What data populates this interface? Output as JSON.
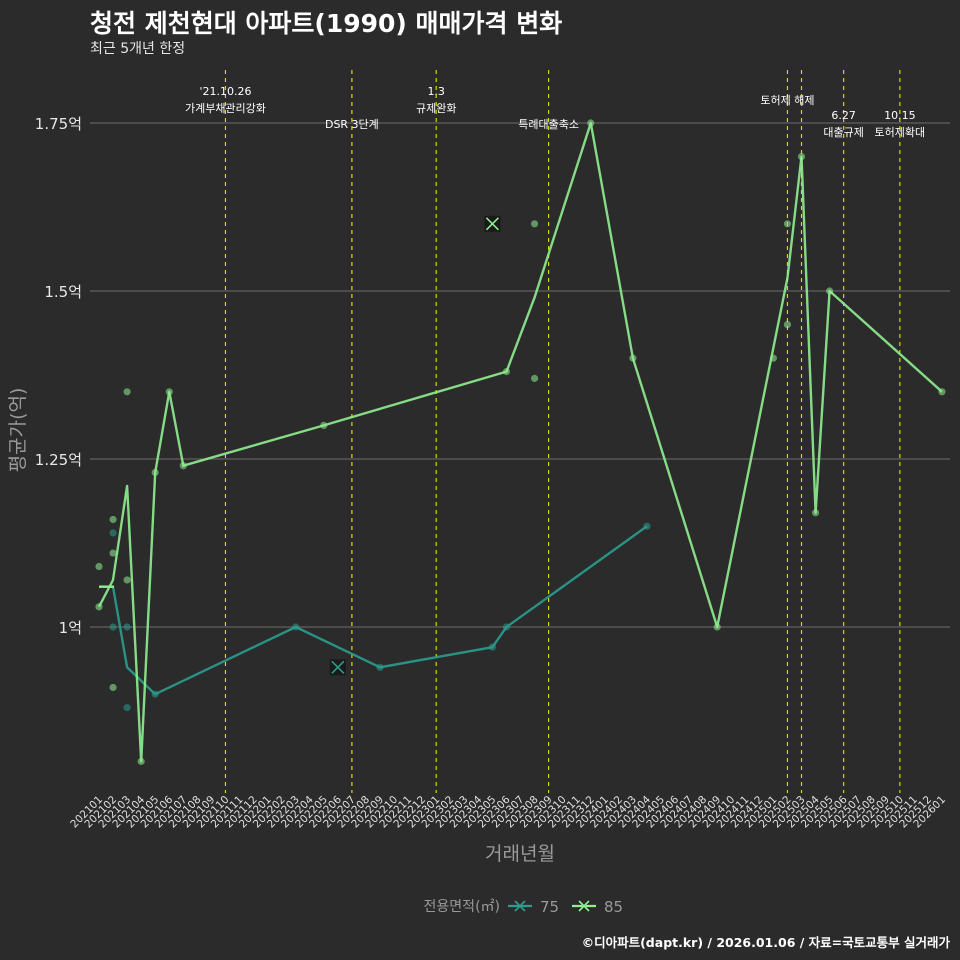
{
  "title": "청전 제천현대 아파트(1990) 매매가격 변화",
  "subtitle": "최근 5개년 한정",
  "caption": "©디아파트(dapt.kr) / 2026.01.06 / 자료=국토교통부 실거래가",
  "chart_data": {
    "type": "line",
    "xlabel": "거래년월",
    "ylabel": "평균가(억)",
    "ylim": [
      0.75,
      1.85
    ],
    "yticks": [
      1.0,
      1.25,
      1.5,
      1.75
    ],
    "ytick_labels": [
      "1억",
      "1.25억",
      "1.5억",
      "1.75억"
    ],
    "grid": true,
    "legend_title": "전용면적(㎡)",
    "legend_position": "bottom",
    "categories": [
      "202101",
      "202102",
      "202103",
      "202104",
      "202105",
      "202106",
      "202107",
      "202108",
      "202109",
      "202110",
      "202111",
      "202112",
      "202201",
      "202202",
      "202203",
      "202204",
      "202205",
      "202206",
      "202207",
      "202208",
      "202209",
      "202210",
      "202211",
      "202212",
      "202301",
      "202302",
      "202303",
      "202304",
      "202305",
      "202306",
      "202307",
      "202308",
      "202309",
      "202310",
      "202311",
      "202312",
      "202401",
      "202402",
      "202403",
      "202404",
      "202405",
      "202406",
      "202407",
      "202408",
      "202409",
      "202410",
      "202411",
      "202412",
      "202501",
      "202502",
      "202503",
      "202504",
      "202505",
      "202506",
      "202507",
      "202508",
      "202509",
      "202510",
      "202511",
      "202512",
      "202601"
    ],
    "series": [
      {
        "name": "75",
        "color": "#2a9d8f",
        "marker": "x",
        "line": [
          [
            "202101",
            1.06
          ],
          [
            "202102",
            1.06
          ],
          [
            "202103",
            0.94
          ],
          [
            "202105",
            0.9
          ],
          [
            "202203",
            1.0
          ],
          [
            "202209",
            0.94
          ],
          [
            "202305",
            0.97
          ],
          [
            "202306",
            1.0
          ],
          [
            "202404",
            1.15
          ]
        ],
        "points": [
          [
            "202102",
            1.14
          ],
          [
            "202102",
            1.0
          ],
          [
            "202103",
            1.0
          ],
          [
            "202103",
            0.88
          ],
          [
            "202105",
            0.9
          ],
          [
            "202203",
            1.0
          ],
          [
            "202209",
            0.94
          ],
          [
            "202305",
            0.97
          ],
          [
            "202306",
            1.0
          ],
          [
            "202404",
            1.15
          ]
        ],
        "x_markers": [
          [
            "202206",
            0.94
          ]
        ]
      },
      {
        "name": "85",
        "color": "#90ee90",
        "marker": "x",
        "line": [
          [
            "202101",
            1.03
          ],
          [
            "202102",
            1.07
          ],
          [
            "202103",
            1.21
          ],
          [
            "202104",
            0.8
          ],
          [
            "202105",
            1.23
          ],
          [
            "202106",
            1.35
          ],
          [
            "202107",
            1.24
          ],
          [
            "202205",
            1.3
          ],
          [
            "202306",
            1.38
          ],
          [
            "202308",
            1.49
          ],
          [
            "202312",
            1.75
          ],
          [
            "202403",
            1.4
          ],
          [
            "202409",
            1.0
          ],
          [
            "202502",
            1.52
          ],
          [
            "202503",
            1.7
          ],
          [
            "202504",
            1.17
          ],
          [
            "202505",
            1.5
          ],
          [
            "202601",
            1.35
          ]
        ],
        "points": [
          [
            "202101",
            1.09
          ],
          [
            "202101",
            1.03
          ],
          [
            "202102",
            1.16
          ],
          [
            "202102",
            1.11
          ],
          [
            "202102",
            0.91
          ],
          [
            "202103",
            1.35
          ],
          [
            "202103",
            1.07
          ],
          [
            "202104",
            0.8
          ],
          [
            "202105",
            1.23
          ],
          [
            "202106",
            1.35
          ],
          [
            "202107",
            1.24
          ],
          [
            "202205",
            1.3
          ],
          [
            "202306",
            1.38
          ],
          [
            "202308",
            1.6
          ],
          [
            "202308",
            1.37
          ],
          [
            "202312",
            1.75
          ],
          [
            "202403",
            1.4
          ],
          [
            "202409",
            1.0
          ],
          [
            "202501",
            1.4
          ],
          [
            "202502",
            1.6
          ],
          [
            "202502",
            1.45
          ],
          [
            "202503",
            1.7
          ],
          [
            "202504",
            1.17
          ],
          [
            "202505",
            1.5
          ],
          [
            "202601",
            1.35
          ]
        ],
        "x_markers": [
          [
            "202305",
            1.6
          ]
        ]
      }
    ],
    "annotations": [
      {
        "x": "202110",
        "lines": [
          "'21.10.26",
          "가계부채관리강화"
        ],
        "level": 1
      },
      {
        "x": "202207",
        "lines": [
          "DSR 3단계"
        ],
        "level": 2
      },
      {
        "x": "202301",
        "lines": [
          "1.3",
          "규제완화"
        ],
        "level": 1
      },
      {
        "x": "202309",
        "lines": [
          "특례대출축소"
        ],
        "level": 2
      },
      {
        "x": "202502",
        "lines": [
          "토허제 해제"
        ],
        "level": 0
      },
      {
        "x": "202503",
        "lines": [],
        "level": 0
      },
      {
        "x": "202506",
        "lines": [
          "6.27",
          "대출규제"
        ],
        "level": 3
      },
      {
        "x": "202510",
        "lines": [
          "10.15",
          "토허제확대"
        ],
        "level": 3
      }
    ]
  }
}
